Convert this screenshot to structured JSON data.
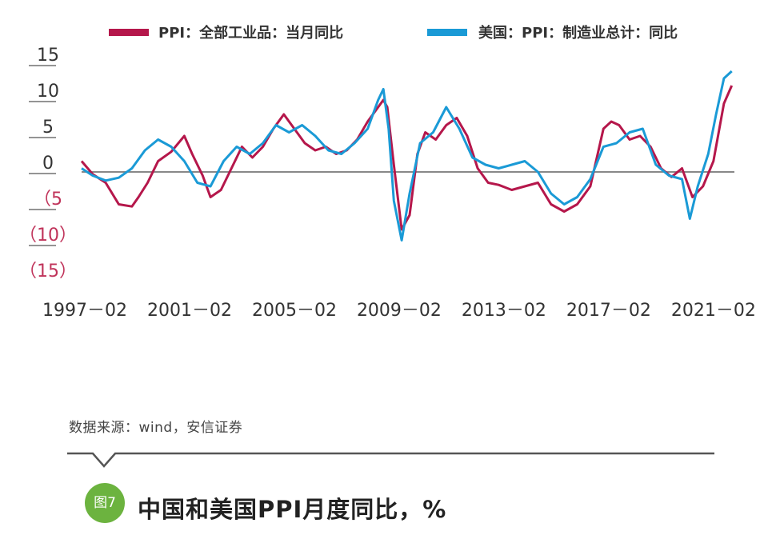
{
  "chart_data": {
    "type": "line",
    "title": "中国和美国PPI月度同比，%",
    "figure_label": "图7",
    "source": "数据来源：wind，安信证券",
    "x_tick_labels": [
      "1997－02",
      "2001－02",
      "2005－02",
      "2009－02",
      "2013－02",
      "2017－02",
      "2021－02"
    ],
    "y_tick_labels": [
      "15",
      "10",
      "5",
      "0",
      "（5",
      "（10）",
      "（15）"
    ],
    "y_ticks": [
      15,
      10,
      5,
      0,
      -5,
      -10,
      -15
    ],
    "ylim": [
      -15,
      15
    ],
    "xlim": [
      1997.08,
      2022.0
    ],
    "legend_position": "top",
    "colors": {
      "china": "#b5174b",
      "us": "#1a9ad6",
      "axis": "#888888",
      "negative_tick": "#c0335a"
    },
    "series": [
      {
        "name": "PPI：全部工业品：当月同比",
        "color": "#b5174b",
        "x": [
          1997.08,
          1997.5,
          1998.0,
          1998.5,
          1999.0,
          1999.25,
          1999.6,
          2000.0,
          2000.5,
          2001.0,
          2001.3,
          2001.7,
          2002.0,
          2002.4,
          2002.8,
          2003.2,
          2003.6,
          2004.0,
          2004.4,
          2004.8,
          2005.2,
          2005.6,
          2006.0,
          2006.4,
          2006.8,
          2007.2,
          2007.6,
          2008.0,
          2008.3,
          2008.6,
          2008.75,
          2009.0,
          2009.3,
          2009.6,
          2009.9,
          2010.2,
          2010.6,
          2011.0,
          2011.4,
          2011.8,
          2012.2,
          2012.6,
          2013.0,
          2013.5,
          2014.0,
          2014.5,
          2015.0,
          2015.5,
          2016.0,
          2016.5,
          2017.0,
          2017.3,
          2017.6,
          2018.0,
          2018.4,
          2018.8,
          2019.2,
          2019.6,
          2020.0,
          2020.4,
          2020.8,
          2021.2,
          2021.6,
          2021.9
        ],
        "values": [
          1.5,
          -0.3,
          -1.5,
          -4.5,
          -4.8,
          -3.5,
          -1.5,
          1.5,
          2.8,
          5.0,
          2.5,
          -0.5,
          -3.5,
          -2.5,
          0.5,
          3.5,
          2.0,
          3.5,
          6.0,
          8.0,
          6.0,
          4.0,
          3.0,
          3.5,
          2.5,
          3.0,
          4.5,
          7.0,
          8.5,
          10.0,
          9.0,
          1.0,
          -8.0,
          -6.0,
          2.5,
          5.5,
          4.5,
          6.5,
          7.5,
          5.0,
          0.5,
          -1.5,
          -1.8,
          -2.5,
          -2.0,
          -1.5,
          -4.5,
          -5.5,
          -4.5,
          -2.0,
          6.0,
          7.0,
          6.5,
          4.5,
          5.0,
          3.5,
          0.5,
          -0.7,
          0.5,
          -3.5,
          -2.0,
          1.5,
          9.5,
          12.0
        ]
      },
      {
        "name": "美国：PPI：制造业总计：同比",
        "color": "#1a9ad6",
        "x": [
          1997.08,
          1997.5,
          1998.0,
          1998.5,
          1999.0,
          1999.5,
          2000.0,
          2000.5,
          2001.0,
          2001.5,
          2002.0,
          2002.5,
          2003.0,
          2003.5,
          2004.0,
          2004.5,
          2005.0,
          2005.5,
          2006.0,
          2006.5,
          2007.0,
          2007.5,
          2008.0,
          2008.4,
          2008.6,
          2008.8,
          2009.0,
          2009.3,
          2009.6,
          2010.0,
          2010.5,
          2011.0,
          2011.5,
          2012.0,
          2012.5,
          2013.0,
          2013.5,
          2014.0,
          2014.5,
          2015.0,
          2015.5,
          2016.0,
          2016.5,
          2017.0,
          2017.5,
          2018.0,
          2018.5,
          2019.0,
          2019.5,
          2020.0,
          2020.3,
          2020.6,
          2021.0,
          2021.3,
          2021.6,
          2021.9
        ],
        "values": [
          0.5,
          -0.5,
          -1.2,
          -0.8,
          0.5,
          3.0,
          4.5,
          3.5,
          1.5,
          -1.5,
          -2.0,
          1.5,
          3.5,
          2.5,
          4.0,
          6.5,
          5.5,
          6.5,
          5.0,
          3.0,
          2.5,
          4.0,
          6.0,
          10.0,
          11.5,
          6.0,
          -4.0,
          -9.5,
          -3.0,
          4.0,
          5.5,
          9.0,
          6.0,
          2.0,
          1.0,
          0.5,
          1.0,
          1.5,
          0.0,
          -3.0,
          -4.5,
          -3.5,
          -1.0,
          3.5,
          4.0,
          5.5,
          6.0,
          1.0,
          -0.5,
          -1.0,
          -6.5,
          -2.0,
          2.5,
          8.0,
          13.0,
          14.0
        ]
      }
    ]
  }
}
